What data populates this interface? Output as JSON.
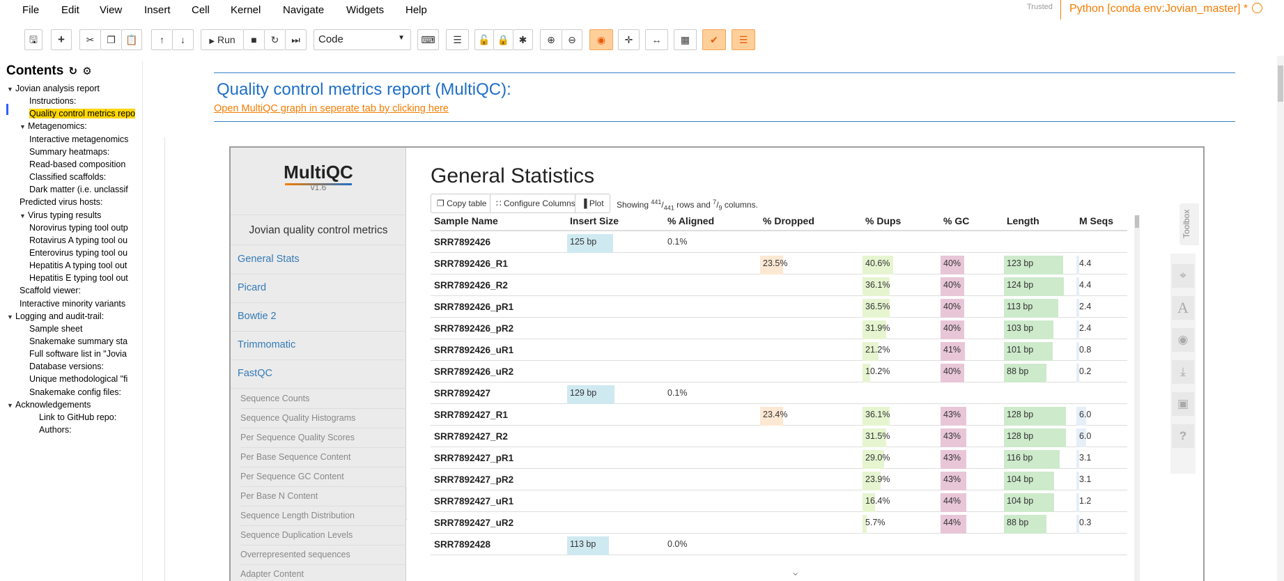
{
  "menu": [
    "File",
    "Edit",
    "View",
    "Insert",
    "Cell",
    "Kernel",
    "Navigate",
    "Widgets",
    "Help"
  ],
  "trusted_label": "Trusted",
  "kernel_label": "Python [conda env:Jovian_master] *",
  "toolbar": {
    "run_label": "Run",
    "cell_type": "Code"
  },
  "toc": {
    "title": "Contents",
    "items": [
      {
        "label": "Jovian analysis report",
        "level": 0,
        "collapsible": true
      },
      {
        "label": "Instructions:",
        "level": 2
      },
      {
        "label": "Quality control metrics repo",
        "level": 2,
        "active": true
      },
      {
        "label": "Metagenomics:",
        "level": 1,
        "collapsible": true
      },
      {
        "label": "Interactive metagenomics",
        "level": 2
      },
      {
        "label": "Summary heatmaps:",
        "level": 2
      },
      {
        "label": "Read-based composition",
        "level": 2
      },
      {
        "label": "Classified scaffolds:",
        "level": 2
      },
      {
        "label": "Dark matter (i.e. unclassif",
        "level": 2
      },
      {
        "label": "Predicted virus hosts:",
        "level": 1
      },
      {
        "label": "Virus typing results",
        "level": 1,
        "collapsible": true
      },
      {
        "label": "Norovirus typing tool outp",
        "level": 2
      },
      {
        "label": "Rotavirus A typing tool ou",
        "level": 2
      },
      {
        "label": "Enterovirus typing tool ou",
        "level": 2
      },
      {
        "label": "Hepatitis A typing tool out",
        "level": 2
      },
      {
        "label": "Hepatitis E typing tool out",
        "level": 2
      },
      {
        "label": "Scaffold viewer:",
        "level": 1
      },
      {
        "label": "Interactive minority variants",
        "level": 1
      },
      {
        "label": "Logging and audit-trail:",
        "level": 0,
        "collapsible": true
      },
      {
        "label": "Sample sheet",
        "level": 2
      },
      {
        "label": "Snakemake summary sta",
        "level": 2
      },
      {
        "label": "Full software list in \"Jovia",
        "level": 2
      },
      {
        "label": "Database versions:",
        "level": 2
      },
      {
        "label": "Unique methodological \"fi",
        "level": 2
      },
      {
        "label": "Snakemake config files:",
        "level": 2
      },
      {
        "label": "Acknowledgements",
        "level": 0,
        "collapsible": true
      },
      {
        "label": "Link to GitHub repo:",
        "level": 3
      },
      {
        "label": "Authors:",
        "level": 3
      }
    ]
  },
  "report": {
    "title": "Quality control metrics report (MultiQC):",
    "link_text": "Open MultiQC graph in seperate tab by clicking here"
  },
  "multiqc": {
    "logo": "MultiQC",
    "version": "v1.6",
    "report_title": "Jovian quality control metrics",
    "nav": [
      "General Stats",
      "Picard",
      "Bowtie 2",
      "Trimmomatic",
      "FastQC"
    ],
    "fastqc_sub": [
      "Sequence Counts",
      "Sequence Quality Histograms",
      "Per Sequence Quality Scores",
      "Per Base Sequence Content",
      "Per Sequence GC Content",
      "Per Base N Content",
      "Sequence Length Distribution",
      "Sequence Duplication Levels",
      "Overrepresented sequences",
      "Adapter Content"
    ],
    "section_title": "General Statistics",
    "buttons": {
      "copy": "Copy table",
      "configure": "Configure Columns",
      "plot": "Plot"
    },
    "showing": {
      "prefix": "Showing",
      "rows_shown": "441",
      "rows_total": "441",
      "mid": "rows and",
      "cols_shown": "7",
      "cols_total": "9",
      "suffix": "columns."
    },
    "toolbox_label": "Toolbox",
    "columns": [
      "Sample Name",
      "Insert Size",
      "% Aligned",
      "% Dropped",
      "% Dups",
      "% GC",
      "Length",
      "M Seqs"
    ],
    "rows": [
      {
        "name": "SRR7892426",
        "insert": "125 bp",
        "insert_v": 0.55,
        "aligned": "0.1%"
      },
      {
        "name": "SRR7892426_R1",
        "dropped": "23.5%",
        "dropped_v": 0.235,
        "dups": "40.6%",
        "dups_v": 0.406,
        "gc": "40%",
        "gc_v": 0.4,
        "length": "123 bp",
        "length_v": 0.85,
        "mseqs": "4.4",
        "mseqs_v": 0.05
      },
      {
        "name": "SRR7892426_R2",
        "dups": "36.1%",
        "dups_v": 0.361,
        "gc": "40%",
        "gc_v": 0.4,
        "length": "124 bp",
        "length_v": 0.86,
        "mseqs": "4.4",
        "mseqs_v": 0.05
      },
      {
        "name": "SRR7892426_pR1",
        "dups": "36.5%",
        "dups_v": 0.365,
        "gc": "40%",
        "gc_v": 0.4,
        "length": "113 bp",
        "length_v": 0.78,
        "mseqs": "2.4",
        "mseqs_v": 0.03
      },
      {
        "name": "SRR7892426_pR2",
        "dups": "31.9%",
        "dups_v": 0.319,
        "gc": "40%",
        "gc_v": 0.4,
        "length": "103 bp",
        "length_v": 0.71,
        "mseqs": "2.4",
        "mseqs_v": 0.03
      },
      {
        "name": "SRR7892426_uR1",
        "dups": "21.2%",
        "dups_v": 0.212,
        "gc": "41%",
        "gc_v": 0.41,
        "length": "101 bp",
        "length_v": 0.7,
        "mseqs": "0.8",
        "mseqs_v": 0.01
      },
      {
        "name": "SRR7892426_uR2",
        "dups": "10.2%",
        "dups_v": 0.102,
        "gc": "40%",
        "gc_v": 0.4,
        "length": "88 bp",
        "length_v": 0.61,
        "mseqs": "0.2",
        "mseqs_v": 0.005
      },
      {
        "name": "SRR7892427",
        "insert": "129 bp",
        "insert_v": 0.57,
        "aligned": "0.1%"
      },
      {
        "name": "SRR7892427_R1",
        "dropped": "23.4%",
        "dropped_v": 0.234,
        "dups": "36.1%",
        "dups_v": 0.361,
        "gc": "43%",
        "gc_v": 0.43,
        "length": "128 bp",
        "length_v": 0.89,
        "mseqs": "6.0",
        "mseqs_v": 0.2
      },
      {
        "name": "SRR7892427_R2",
        "dups": "31.5%",
        "dups_v": 0.315,
        "gc": "43%",
        "gc_v": 0.43,
        "length": "128 bp",
        "length_v": 0.89,
        "mseqs": "6.0",
        "mseqs_v": 0.2
      },
      {
        "name": "SRR7892427_pR1",
        "dups": "29.0%",
        "dups_v": 0.29,
        "gc": "43%",
        "gc_v": 0.43,
        "length": "116 bp",
        "length_v": 0.8,
        "mseqs": "3.1",
        "mseqs_v": 0.04
      },
      {
        "name": "SRR7892427_pR2",
        "dups": "23.9%",
        "dups_v": 0.239,
        "gc": "43%",
        "gc_v": 0.43,
        "length": "104 bp",
        "length_v": 0.72,
        "mseqs": "3.1",
        "mseqs_v": 0.04
      },
      {
        "name": "SRR7892427_uR1",
        "dups": "16.4%",
        "dups_v": 0.164,
        "gc": "44%",
        "gc_v": 0.44,
        "length": "104 bp",
        "length_v": 0.72,
        "mseqs": "1.2",
        "mseqs_v": 0.015
      },
      {
        "name": "SRR7892427_uR2",
        "dups": "5.7%",
        "dups_v": 0.057,
        "gc": "44%",
        "gc_v": 0.44,
        "length": "88 bp",
        "length_v": 0.61,
        "mseqs": "0.3",
        "mseqs_v": 0.005
      },
      {
        "name": "SRR7892428",
        "insert": "113 bp",
        "insert_v": 0.5,
        "aligned": "0.0%"
      }
    ]
  },
  "colors": {
    "accent_orange": "#f57c00",
    "title_blue": "#1e6fc8",
    "bar_insert": "#cfe9f1",
    "bar_dropped": "#fde8d3",
    "bar_dups": "#e6f5d0",
    "bar_gc": "#e8c6d8",
    "bar_length": "#cdeacb",
    "bar_mseqs": "#e6eef8"
  }
}
